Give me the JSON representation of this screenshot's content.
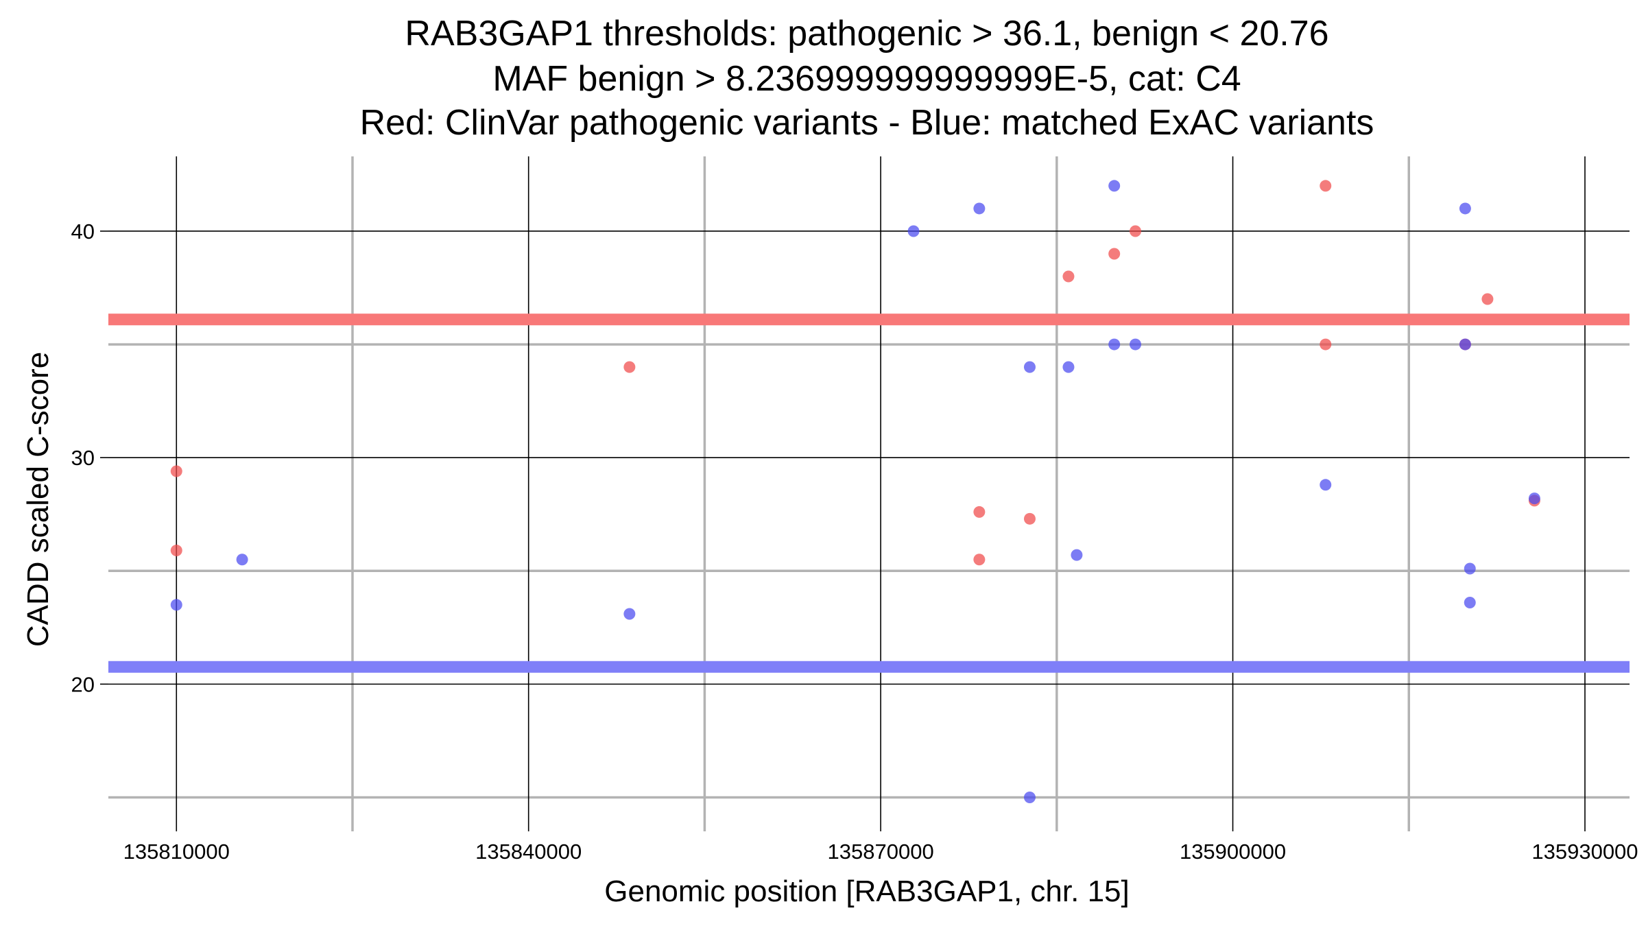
{
  "chart_data": {
    "type": "scatter",
    "title_lines": [
      "RAB3GAP1 thresholds: pathogenic > 36.1, benign < 20.76",
      "MAF benign > 8.236999999999999E-5, cat: C4",
      "Red: ClinVar pathogenic variants - Blue: matched ExAC variants"
    ],
    "xlabel": "Genomic position [RAB3GAP1, chr. 15]",
    "ylabel": "CADD scaled C-score",
    "xlim": [
      135804200,
      135933800
    ],
    "ylim": [
      13.5,
      43.3
    ],
    "x_ticks": [
      135810000,
      135840000,
      135870000,
      135900000,
      135930000
    ],
    "x_tick_labels": [
      "135810000",
      "135840000",
      "135870000",
      "135900000",
      "135930000"
    ],
    "x_minor_ticks": [
      135825000,
      135855000,
      135885000,
      135915000
    ],
    "y_ticks": [
      20,
      30,
      40
    ],
    "y_tick_labels": [
      "20",
      "30",
      "40"
    ],
    "y_minor_ticks": [
      15,
      25,
      35
    ],
    "grid": true,
    "thresholds": [
      {
        "name": "pathogenic",
        "value": 36.1,
        "color": "#f87878"
      },
      {
        "name": "benign",
        "value": 20.76,
        "color": "#7f7ff8"
      }
    ],
    "series": [
      {
        "color": "#f04a4a",
        "points": [
          {
            "x": 135810000,
            "y": 29.4
          },
          {
            "x": 135810000,
            "y": 25.9
          },
          {
            "x": 135848600,
            "y": 34.0
          },
          {
            "x": 135878400,
            "y": 27.6
          },
          {
            "x": 135878400,
            "y": 25.5
          },
          {
            "x": 135882700,
            "y": 27.3
          },
          {
            "x": 135886000,
            "y": 38.0
          },
          {
            "x": 135889900,
            "y": 39.0
          },
          {
            "x": 135891700,
            "y": 40.0
          },
          {
            "x": 135907900,
            "y": 42.0
          },
          {
            "x": 135907900,
            "y": 35.0
          },
          {
            "x": 135919800,
            "y": 35.0
          },
          {
            "x": 135921700,
            "y": 37.0
          },
          {
            "x": 135925700,
            "y": 28.1
          }
        ]
      },
      {
        "color": "#4a4af0",
        "points": [
          {
            "x": 135810000,
            "y": 23.5
          },
          {
            "x": 135815600,
            "y": 25.5
          },
          {
            "x": 135848600,
            "y": 23.1
          },
          {
            "x": 135872800,
            "y": 40.0
          },
          {
            "x": 135878400,
            "y": 41.0
          },
          {
            "x": 135882700,
            "y": 34.0
          },
          {
            "x": 135882700,
            "y": 15.0
          },
          {
            "x": 135886000,
            "y": 34.0
          },
          {
            "x": 135886700,
            "y": 25.7
          },
          {
            "x": 135889900,
            "y": 42.0
          },
          {
            "x": 135889900,
            "y": 35.0
          },
          {
            "x": 135891700,
            "y": 35.0
          },
          {
            "x": 135907900,
            "y": 28.8
          },
          {
            "x": 135919800,
            "y": 41.0
          },
          {
            "x": 135919800,
            "y": 35.0
          },
          {
            "x": 135920200,
            "y": 25.1
          },
          {
            "x": 135920200,
            "y": 23.6
          },
          {
            "x": 135925700,
            "y": 28.2
          }
        ]
      }
    ]
  }
}
